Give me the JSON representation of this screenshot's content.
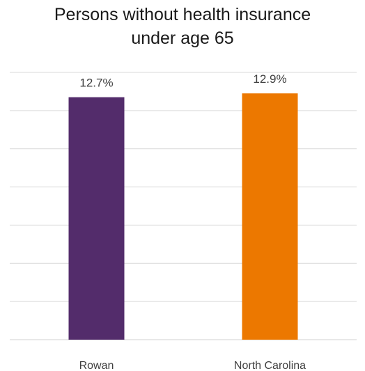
{
  "chart_data": {
    "type": "bar",
    "title_lines": [
      "Persons without health insurance",
      "under age 65"
    ],
    "categories": [
      "Rowan",
      "North Carolina"
    ],
    "values": [
      12.7,
      12.9
    ],
    "value_labels": [
      "12.7%",
      "12.9%"
    ],
    "colors": [
      "#532c6b",
      "#ec7800"
    ],
    "xlabel": "",
    "ylabel": "",
    "ylim": [
      0,
      14
    ],
    "grid": true,
    "legend": "none"
  }
}
